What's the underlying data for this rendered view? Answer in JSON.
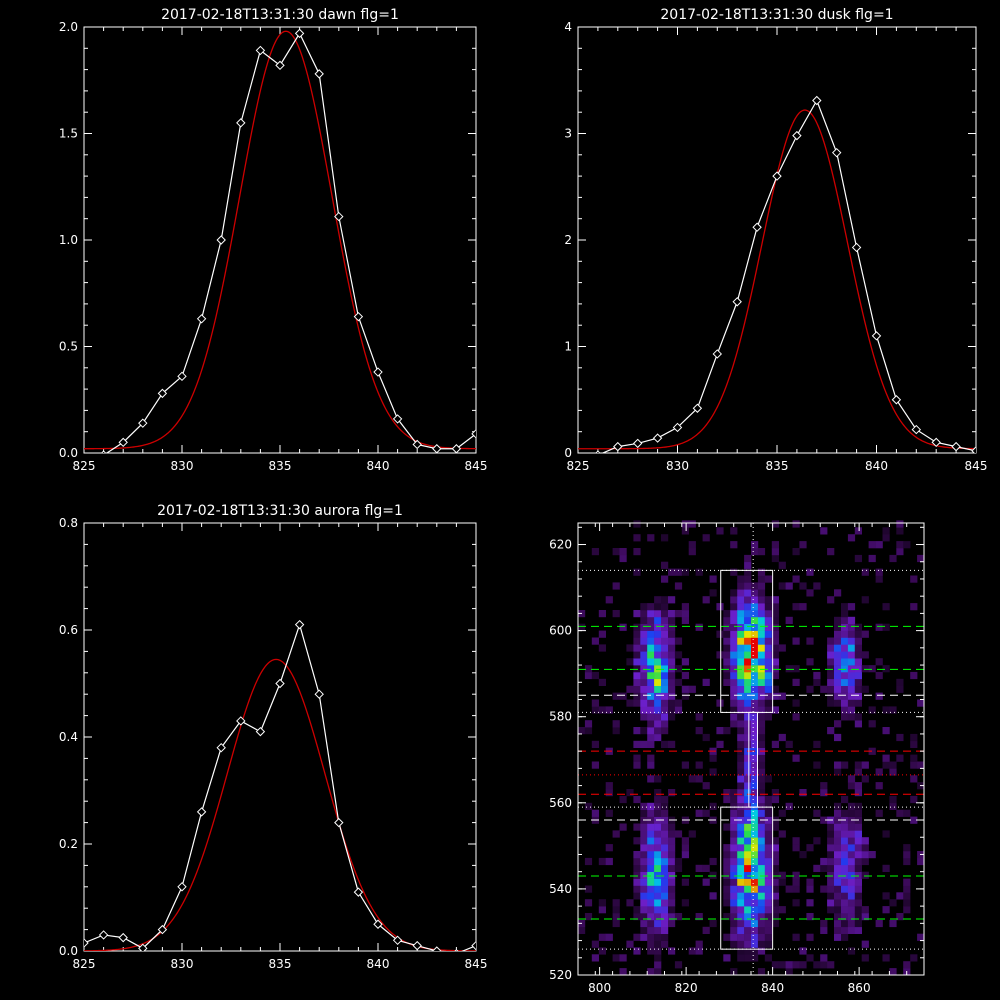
{
  "chart_data": [
    {
      "type": "line",
      "title": "2017-02-18T13:31:30 dawn flg=1",
      "xlim": [
        825,
        845
      ],
      "ylim": [
        0,
        2.0
      ],
      "xticks": [
        "825",
        "830",
        "835",
        "840",
        "845"
      ],
      "yticks": [
        "0.0",
        "0.5",
        "1.0",
        "1.5",
        "2.0"
      ],
      "colors": {
        "observed": "#ffffff",
        "fit": "#cc0000"
      },
      "series": [
        {
          "x": [
            826,
            827,
            828,
            829,
            830,
            831,
            832,
            833,
            834,
            835,
            836,
            837,
            838,
            839,
            840,
            841,
            842,
            843,
            844,
            845
          ],
          "values": [
            -0.01,
            0.05,
            0.14,
            0.28,
            0.36,
            0.63,
            1.0,
            1.55,
            1.89,
            1.82,
            1.97,
            1.78,
            1.11,
            0.64,
            0.38,
            0.16,
            0.04,
            0.02,
            0.02,
            0.09
          ]
        },
        {
          "fit": {
            "a": 1.96,
            "mu": 835.3,
            "sigma": 2.35,
            "c": 0.02
          }
        }
      ]
    },
    {
      "type": "line",
      "title": "2017-02-18T13:31:30 dusk flg=1",
      "xlim": [
        825,
        845
      ],
      "ylim": [
        0,
        4
      ],
      "xticks": [
        "825",
        "830",
        "835",
        "840",
        "845"
      ],
      "yticks": [
        "0",
        "1",
        "2",
        "3",
        "4"
      ],
      "colors": {
        "observed": "#ffffff",
        "fit": "#cc0000"
      },
      "series": [
        {
          "x": [
            826,
            827,
            828,
            829,
            830,
            831,
            832,
            833,
            834,
            835,
            836,
            837,
            838,
            839,
            840,
            841,
            842,
            843,
            844,
            845
          ],
          "values": [
            -0.02,
            0.06,
            0.09,
            0.14,
            0.24,
            0.42,
            0.93,
            1.42,
            2.12,
            2.6,
            2.98,
            3.31,
            2.82,
            1.93,
            1.1,
            0.5,
            0.22,
            0.1,
            0.06,
            0.02
          ]
        },
        {
          "fit": {
            "a": 3.18,
            "mu": 836.4,
            "sigma": 2.15,
            "c": 0.04
          }
        }
      ]
    },
    {
      "type": "line",
      "title": "2017-02-18T13:31:30 aurora flg=1",
      "xlim": [
        825,
        845
      ],
      "ylim": [
        0,
        0.8
      ],
      "xticks": [
        "825",
        "830",
        "835",
        "840",
        "845"
      ],
      "yticks": [
        "0.0",
        "0.2",
        "0.4",
        "0.6",
        "0.8"
      ],
      "colors": {
        "observed": "#ffffff",
        "fit": "#cc0000"
      },
      "series": [
        {
          "x": [
            825,
            826,
            827,
            828,
            829,
            830,
            831,
            832,
            833,
            834,
            835,
            836,
            837,
            838,
            839,
            840,
            841,
            842,
            843,
            844,
            845
          ],
          "values": [
            0.015,
            0.03,
            0.025,
            0.005,
            0.04,
            0.12,
            0.26,
            0.38,
            0.43,
            0.41,
            0.5,
            0.61,
            0.48,
            0.24,
            0.11,
            0.05,
            0.02,
            0.01,
            0.0,
            -0.005,
            0.01
          ]
        },
        {
          "fit": {
            "a": 0.545,
            "mu": 834.8,
            "sigma": 2.5,
            "c": 0.0
          }
        }
      ]
    },
    {
      "type": "heatmap",
      "xlim": [
        795,
        875
      ],
      "ylim": [
        520,
        625
      ],
      "xticks": [
        "800",
        "820",
        "840",
        "860"
      ],
      "yticks": [
        "520",
        "540",
        "560",
        "580",
        "600",
        "620"
      ],
      "boxes": [
        {
          "x": [
            828,
            840
          ],
          "y": [
            526,
            559
          ]
        },
        {
          "x": [
            828,
            840
          ],
          "y": [
            581,
            614
          ]
        }
      ],
      "vertical_line_x": 835.5,
      "hlines": [
        {
          "y": 614,
          "color": "#ffffff",
          "style": "dotted"
        },
        {
          "y": 601,
          "color": "#00ff00",
          "style": "dashed"
        },
        {
          "y": 591,
          "color": "#00ff00",
          "style": "dashed"
        },
        {
          "y": 585,
          "color": "#ffffff",
          "style": "dashed"
        },
        {
          "y": 581,
          "color": "#ffffff",
          "style": "dotted"
        },
        {
          "y": 572,
          "color": "#ff0000",
          "style": "dashed"
        },
        {
          "y": 566.5,
          "color": "#ff0000",
          "style": "dotted"
        },
        {
          "y": 562,
          "color": "#ff0000",
          "style": "dashed"
        },
        {
          "y": 559,
          "color": "#ffffff",
          "style": "dotted"
        },
        {
          "y": 556,
          "color": "#ffffff",
          "style": "dashed"
        },
        {
          "y": 543,
          "color": "#00ff00",
          "style": "dashed"
        },
        {
          "y": 533,
          "color": "#00ff00",
          "style": "dashed"
        },
        {
          "y": 526,
          "color": "#ffffff",
          "style": "dotted"
        }
      ],
      "blobs": [
        {
          "x": 813,
          "y": 591,
          "sx": 2.5,
          "sy": 8,
          "amp": 0.55
        },
        {
          "x": 813,
          "y": 543,
          "sx": 2.5,
          "sy": 9,
          "amp": 0.5
        },
        {
          "x": 835,
          "y": 595,
          "sx": 2.8,
          "sy": 8,
          "amp": 0.95
        },
        {
          "x": 835,
          "y": 545,
          "sx": 2.8,
          "sy": 10,
          "amp": 0.75
        },
        {
          "x": 835,
          "y": 570,
          "sx": 1.2,
          "sy": 6,
          "amp": 0.35
        },
        {
          "x": 857,
          "y": 592,
          "sx": 2.5,
          "sy": 7,
          "amp": 0.35
        },
        {
          "x": 857,
          "y": 545,
          "sx": 2.5,
          "sy": 9,
          "amp": 0.3
        }
      ]
    }
  ]
}
